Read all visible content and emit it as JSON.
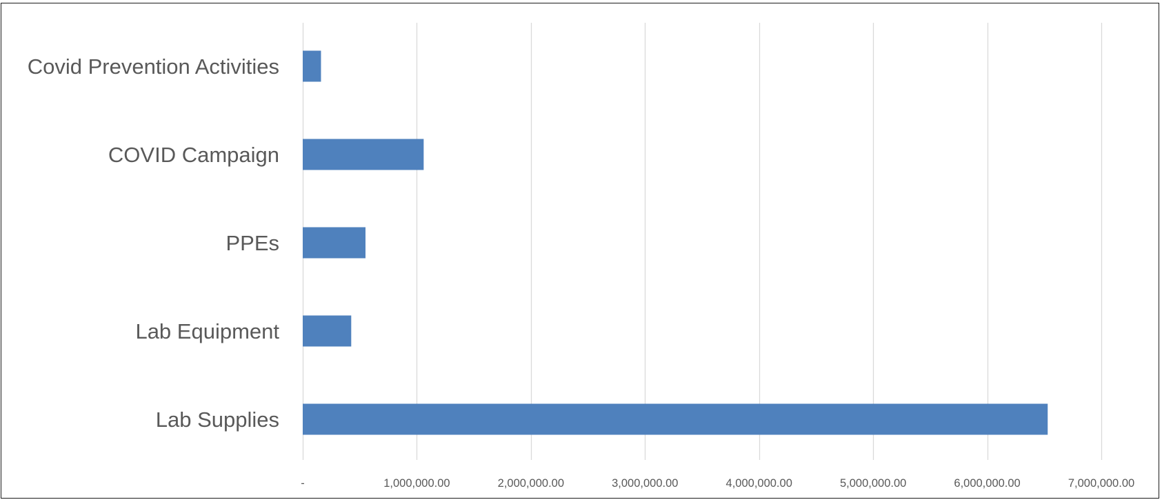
{
  "chart_data": {
    "type": "bar",
    "orientation": "horizontal",
    "categories": [
      "Covid Prevention Activities",
      "COVID Campaign",
      "PPEs",
      "Lab Equipment",
      "Lab Supplies"
    ],
    "values": [
      160000,
      1060000,
      550000,
      425000,
      6530000
    ],
    "xlim": [
      0,
      7000000
    ],
    "x_ticks": [
      0,
      1000000,
      2000000,
      3000000,
      4000000,
      5000000,
      6000000,
      7000000
    ],
    "x_tick_labels": [
      "-",
      "1,000,000.00",
      "2,000,000.00",
      "3,000,000.00",
      "4,000,000.00",
      "5,000,000.00",
      "6,000,000.00",
      "7,000,000.00"
    ],
    "title": "",
    "xlabel": "",
    "ylabel": "",
    "grid": "vertical",
    "legend": "none",
    "bar_color": "#4f81bd",
    "grid_color": "#d9d9d9"
  }
}
